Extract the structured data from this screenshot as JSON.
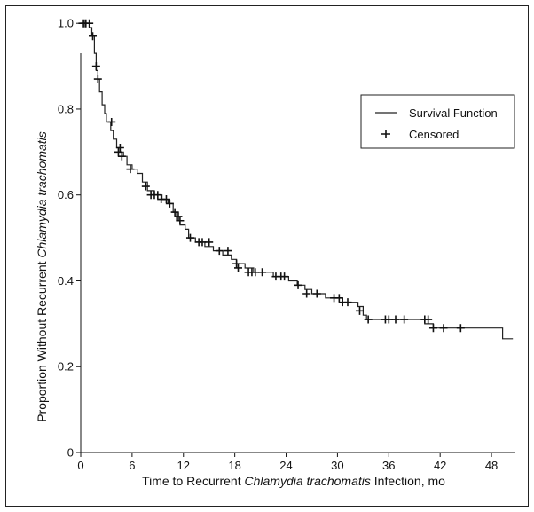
{
  "chart_data": {
    "type": "line",
    "title": "",
    "xlabel": {
      "prefix": "Time to Recurrent ",
      "italic": "Chlamydia trachomatis",
      "suffix": " Infection, mo"
    },
    "ylabel": {
      "prefix": "Proportion Without Recurrent ",
      "italic": "Chlamydia trachomatis",
      "suffix": ""
    },
    "xlim": [
      0,
      51
    ],
    "ylim": [
      0,
      1.05
    ],
    "xticks": [
      "0",
      "6",
      "12",
      "18",
      "24",
      "30",
      "36",
      "42",
      "48"
    ],
    "yticks": [
      "0",
      "0.2",
      "0.4",
      "0.6",
      "0.8",
      "1.0"
    ],
    "grid": false,
    "legend_position": "top-right",
    "legend": [
      {
        "label": "Survival Function",
        "marker": "line"
      },
      {
        "label": "Censored",
        "marker": "+"
      }
    ],
    "series": [
      {
        "name": "Survival Function",
        "steps": [
          [
            0,
            1.0
          ],
          [
            1.0,
            0.99
          ],
          [
            1.3,
            0.97
          ],
          [
            1.6,
            0.93
          ],
          [
            1.8,
            0.89
          ],
          [
            2.0,
            0.87
          ],
          [
            2.2,
            0.84
          ],
          [
            2.5,
            0.81
          ],
          [
            2.8,
            0.79
          ],
          [
            3.0,
            0.77
          ],
          [
            3.5,
            0.75
          ],
          [
            3.8,
            0.73
          ],
          [
            4.2,
            0.71
          ],
          [
            4.6,
            0.7
          ],
          [
            5.0,
            0.69
          ],
          [
            5.4,
            0.67
          ],
          [
            6.0,
            0.66
          ],
          [
            6.6,
            0.65
          ],
          [
            7.2,
            0.63
          ],
          [
            7.8,
            0.61
          ],
          [
            8.6,
            0.6
          ],
          [
            9.5,
            0.59
          ],
          [
            10.2,
            0.58
          ],
          [
            10.8,
            0.56
          ],
          [
            11.2,
            0.54
          ],
          [
            11.6,
            0.53
          ],
          [
            12.2,
            0.52
          ],
          [
            12.6,
            0.5
          ],
          [
            13.4,
            0.49
          ],
          [
            14.5,
            0.48
          ],
          [
            15.5,
            0.47
          ],
          [
            16.6,
            0.46
          ],
          [
            17.6,
            0.45
          ],
          [
            18.2,
            0.44
          ],
          [
            19.2,
            0.43
          ],
          [
            20.2,
            0.42
          ],
          [
            22.5,
            0.41
          ],
          [
            24.3,
            0.4
          ],
          [
            25.3,
            0.39
          ],
          [
            26.2,
            0.38
          ],
          [
            27.0,
            0.37
          ],
          [
            28.6,
            0.36
          ],
          [
            30.6,
            0.35
          ],
          [
            32.4,
            0.34
          ],
          [
            33.0,
            0.32
          ],
          [
            33.4,
            0.31
          ],
          [
            40.2,
            0.3
          ],
          [
            41.2,
            0.29
          ],
          [
            49.3,
            0.265
          ],
          [
            50.5,
            0.265
          ]
        ]
      },
      {
        "name": "Censored",
        "points": [
          [
            0.2,
            1.0
          ],
          [
            0.4,
            1.0
          ],
          [
            0.6,
            1.0
          ],
          [
            1.0,
            1.0
          ],
          [
            1.4,
            0.97
          ],
          [
            1.8,
            0.9
          ],
          [
            2.0,
            0.87
          ],
          [
            3.6,
            0.77
          ],
          [
            4.4,
            0.7
          ],
          [
            4.6,
            0.71
          ],
          [
            4.8,
            0.69
          ],
          [
            5.8,
            0.66
          ],
          [
            7.6,
            0.62
          ],
          [
            8.2,
            0.6
          ],
          [
            8.6,
            0.6
          ],
          [
            9.0,
            0.6
          ],
          [
            9.4,
            0.59
          ],
          [
            10.0,
            0.59
          ],
          [
            10.4,
            0.58
          ],
          [
            11.0,
            0.56
          ],
          [
            11.4,
            0.55
          ],
          [
            11.6,
            0.54
          ],
          [
            12.8,
            0.5
          ],
          [
            13.8,
            0.49
          ],
          [
            14.2,
            0.49
          ],
          [
            15.0,
            0.49
          ],
          [
            16.2,
            0.47
          ],
          [
            17.2,
            0.47
          ],
          [
            18.2,
            0.44
          ],
          [
            18.4,
            0.43
          ],
          [
            19.6,
            0.42
          ],
          [
            20.0,
            0.42
          ],
          [
            20.4,
            0.42
          ],
          [
            21.2,
            0.42
          ],
          [
            22.8,
            0.41
          ],
          [
            23.4,
            0.41
          ],
          [
            23.8,
            0.41
          ],
          [
            25.4,
            0.39
          ],
          [
            26.4,
            0.37
          ],
          [
            27.6,
            0.37
          ],
          [
            29.6,
            0.36
          ],
          [
            30.2,
            0.36
          ],
          [
            30.6,
            0.35
          ],
          [
            31.2,
            0.35
          ],
          [
            32.6,
            0.33
          ],
          [
            33.6,
            0.31
          ],
          [
            35.6,
            0.31
          ],
          [
            36.0,
            0.31
          ],
          [
            36.8,
            0.31
          ],
          [
            37.8,
            0.31
          ],
          [
            40.2,
            0.31
          ],
          [
            40.6,
            0.31
          ],
          [
            41.2,
            0.29
          ],
          [
            42.4,
            0.29
          ],
          [
            44.4,
            0.29
          ]
        ]
      }
    ]
  }
}
